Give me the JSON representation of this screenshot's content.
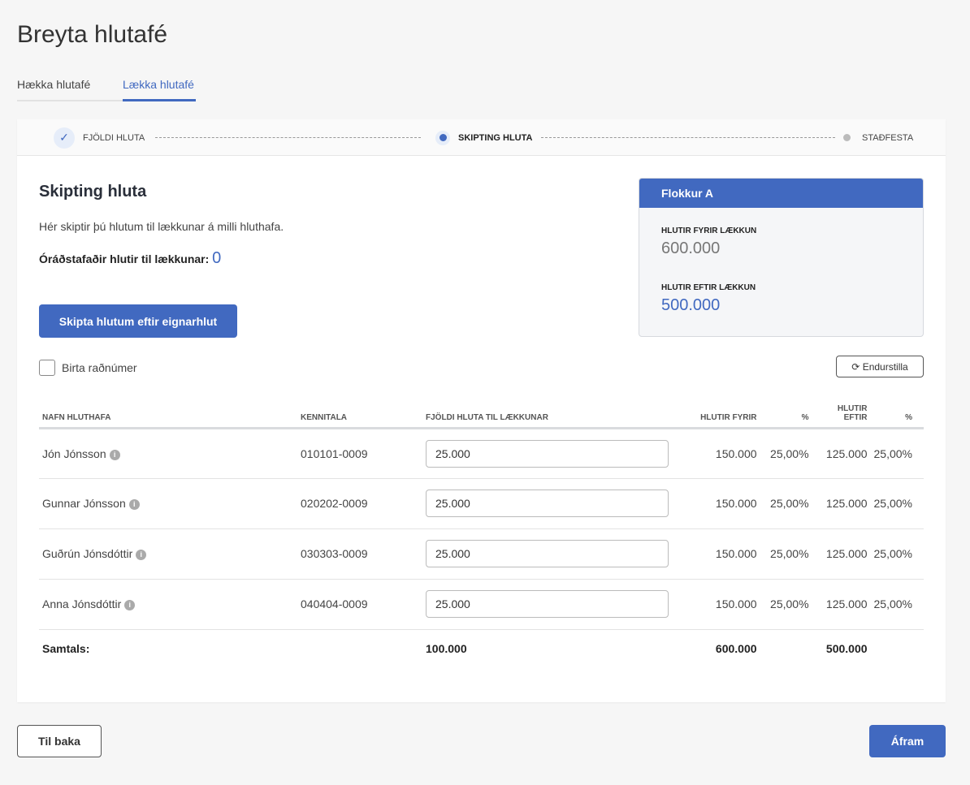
{
  "page_title": "Breyta hlutafé",
  "tabs": [
    {
      "label": "Hækka hlutafé"
    },
    {
      "label": "Lækka hlutafé",
      "active": true
    }
  ],
  "stepper": [
    {
      "label": "FJÖLDI HLUTA",
      "state": "done"
    },
    {
      "label": "SKIPTING HLUTA",
      "state": "current"
    },
    {
      "label": "STAÐFESTA",
      "state": "pending"
    }
  ],
  "section": {
    "title": "Skipting hluta",
    "description": "Hér skiptir þú hlutum til lækkunar á milli hluthafa.",
    "unallocated_label": "Óráðstafaðir hlutir til lækkunar:",
    "unallocated_value": "0",
    "split_button": "Skipta hlutum eftir eignarhlut"
  },
  "summary": {
    "title": "Flokkur A",
    "before_label": "HLUTIR FYRIR LÆKKUN",
    "before_value": "600.000",
    "after_label": "HLUTIR EFTIR LÆKKUN",
    "after_value": "500.000"
  },
  "show_ids_label": "Birta raðnúmer",
  "show_ids_checked": false,
  "reset_button": "Endurstilla",
  "table": {
    "headers": [
      "NAFN HLUTHAFA",
      "KENNITALA",
      "FJÖLDI HLUTA TIL LÆKKUNAR",
      "HLUTIR FYRIR",
      "%",
      "HLUTIR EFTIR",
      "%"
    ],
    "rows": [
      {
        "name": "Jón Jónsson",
        "kennitala": "010101-0009",
        "amount": "25.000",
        "before": "150.000",
        "before_pct": "25,00%",
        "after": "125.000",
        "after_pct": "25,00%"
      },
      {
        "name": "Gunnar Jónsson",
        "kennitala": "020202-0009",
        "amount": "25.000",
        "before": "150.000",
        "before_pct": "25,00%",
        "after": "125.000",
        "after_pct": "25,00%"
      },
      {
        "name": "Guðrún Jónsdóttir",
        "kennitala": "030303-0009",
        "amount": "25.000",
        "before": "150.000",
        "before_pct": "25,00%",
        "after": "125.000",
        "after_pct": "25,00%"
      },
      {
        "name": "Anna Jónsdóttir",
        "kennitala": "040404-0009",
        "amount": "25.000",
        "before": "150.000",
        "before_pct": "25,00%",
        "after": "125.000",
        "after_pct": "25,00%"
      }
    ],
    "total": {
      "label": "Samtals:",
      "amount": "100.000",
      "before": "600.000",
      "after": "500.000"
    }
  },
  "footer": {
    "back": "Til baka",
    "next": "Áfram"
  },
  "colors": {
    "accent": "#4169c0",
    "background": "#f6f6f6"
  }
}
